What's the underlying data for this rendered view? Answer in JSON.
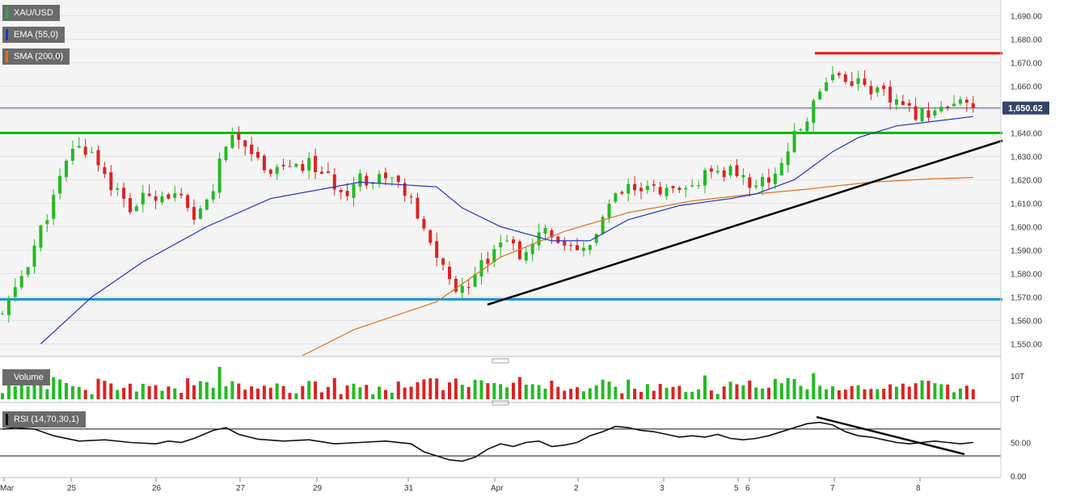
{
  "legend": {
    "symbol": "XAU/USD",
    "ema": "EMA (55,0)",
    "sma": "SMA (200,0)",
    "volume": "Volume",
    "rsi": "RSI (14,70,30,1)"
  },
  "colors": {
    "up": "#22bb22",
    "down": "#dd2222",
    "ema": "#2233cc",
    "sma": "#e07020",
    "support": "#1a8fd6",
    "resistance": "#00bb00",
    "high": "#ee1111",
    "trend": "#000000"
  },
  "chart_data": {
    "type": "candlestick",
    "title": "",
    "price_axis": {
      "min": 1545,
      "max": 1695,
      "ticks": [
        "1,690.00",
        "1,680.00",
        "1,670.00",
        "1,660.00",
        "1,650.00",
        "1,640.00",
        "1,630.00",
        "1,620.00",
        "1,610.00",
        "1,600.00",
        "1,590.00",
        "1,580.00",
        "1,570.00",
        "1,560.00",
        "1,550.00"
      ]
    },
    "last_price": "1,650.62",
    "x_labels": [
      "Mar",
      "25",
      "26",
      "27",
      "29",
      "31",
      "Apr",
      "2",
      "3",
      "5",
      "6",
      "7",
      "8"
    ],
    "horizontal_levels": [
      {
        "name": "support",
        "value": 1569
      },
      {
        "name": "resistance",
        "value": 1640
      },
      {
        "name": "high",
        "value": 1674
      }
    ],
    "volume_axis": {
      "ticks": [
        "10T",
        "0T"
      ]
    },
    "rsi_axis": {
      "ticks": [
        "50.00",
        "0.00"
      ],
      "overbought": 70,
      "oversold": 30
    },
    "price_path": [
      [
        0,
        1562
      ],
      [
        4,
        1585
      ],
      [
        8,
        1612
      ],
      [
        11,
        1634
      ],
      [
        14,
        1632
      ],
      [
        17,
        1618
      ],
      [
        20,
        1607
      ],
      [
        23,
        1614
      ],
      [
        26,
        1614
      ],
      [
        28,
        1611
      ],
      [
        30,
        1601
      ],
      [
        33,
        1617
      ],
      [
        35,
        1636
      ],
      [
        38,
        1637
      ],
      [
        40,
        1628
      ],
      [
        42,
        1625
      ],
      [
        44,
        1626
      ],
      [
        46,
        1624
      ],
      [
        48,
        1627
      ],
      [
        50,
        1623
      ],
      [
        52,
        1617
      ],
      [
        54,
        1616
      ],
      [
        56,
        1622
      ],
      [
        58,
        1619
      ],
      [
        60,
        1623
      ],
      [
        62,
        1618
      ],
      [
        64,
        1610
      ],
      [
        66,
        1597
      ],
      [
        68,
        1588
      ],
      [
        70,
        1577
      ],
      [
        72,
        1572
      ],
      [
        74,
        1582
      ],
      [
        76,
        1587
      ],
      [
        78,
        1596
      ],
      [
        80,
        1591
      ],
      [
        82,
        1587
      ],
      [
        84,
        1596
      ],
      [
        86,
        1598
      ],
      [
        88,
        1590
      ],
      [
        90,
        1588
      ],
      [
        92,
        1592
      ],
      [
        94,
        1604
      ],
      [
        96,
        1612
      ],
      [
        98,
        1616
      ],
      [
        100,
        1614
      ],
      [
        102,
        1617
      ],
      [
        104,
        1615
      ],
      [
        106,
        1613
      ],
      [
        108,
        1617
      ],
      [
        110,
        1622
      ],
      [
        112,
        1621
      ],
      [
        114,
        1625
      ],
      [
        116,
        1620
      ],
      [
        118,
        1618
      ],
      [
        120,
        1620
      ],
      [
        122,
        1628
      ],
      [
        124,
        1638
      ],
      [
        126,
        1646
      ],
      [
        128,
        1660
      ],
      [
        130,
        1666
      ],
      [
        132,
        1663
      ],
      [
        134,
        1662
      ],
      [
        136,
        1659
      ],
      [
        138,
        1656
      ],
      [
        140,
        1652
      ],
      [
        142,
        1649
      ],
      [
        144,
        1648
      ],
      [
        146,
        1651
      ],
      [
        148,
        1650
      ],
      [
        150,
        1652
      ],
      [
        152,
        1650.6
      ]
    ],
    "ema_path": [
      [
        6,
        1550
      ],
      [
        14,
        1570
      ],
      [
        22,
        1585
      ],
      [
        32,
        1600
      ],
      [
        42,
        1612
      ],
      [
        56,
        1619
      ],
      [
        68,
        1617
      ],
      [
        72,
        1608
      ],
      [
        78,
        1600
      ],
      [
        86,
        1594
      ],
      [
        92,
        1594
      ],
      [
        98,
        1603
      ],
      [
        106,
        1609
      ],
      [
        114,
        1612
      ],
      [
        118,
        1614
      ],
      [
        124,
        1620
      ],
      [
        130,
        1632
      ],
      [
        134,
        1638
      ],
      [
        140,
        1643
      ],
      [
        146,
        1645
      ],
      [
        152,
        1647
      ]
    ],
    "sma_path": [
      [
        47,
        1545
      ],
      [
        55,
        1556
      ],
      [
        68,
        1568
      ],
      [
        78,
        1587
      ],
      [
        88,
        1598
      ],
      [
        98,
        1606
      ],
      [
        108,
        1611
      ],
      [
        118,
        1614
      ],
      [
        126,
        1616
      ],
      [
        136,
        1619
      ],
      [
        146,
        1620.5
      ],
      [
        152,
        1621
      ]
    ],
    "rsi_path": [
      [
        0,
        70
      ],
      [
        2,
        72
      ],
      [
        5,
        70
      ],
      [
        8,
        60
      ],
      [
        12,
        52
      ],
      [
        16,
        54
      ],
      [
        20,
        50
      ],
      [
        24,
        48
      ],
      [
        26,
        52
      ],
      [
        28,
        50
      ],
      [
        30,
        56
      ],
      [
        33,
        68
      ],
      [
        35,
        72
      ],
      [
        37,
        62
      ],
      [
        40,
        55
      ],
      [
        44,
        52
      ],
      [
        48,
        54
      ],
      [
        52,
        48
      ],
      [
        56,
        50
      ],
      [
        60,
        52
      ],
      [
        64,
        48
      ],
      [
        66,
        36
      ],
      [
        68,
        30
      ],
      [
        70,
        24
      ],
      [
        72,
        22
      ],
      [
        74,
        28
      ],
      [
        76,
        40
      ],
      [
        78,
        48
      ],
      [
        80,
        44
      ],
      [
        82,
        50
      ],
      [
        84,
        52
      ],
      [
        86,
        44
      ],
      [
        88,
        46
      ],
      [
        90,
        50
      ],
      [
        92,
        60
      ],
      [
        94,
        66
      ],
      [
        96,
        74
      ],
      [
        98,
        72
      ],
      [
        100,
        68
      ],
      [
        102,
        66
      ],
      [
        104,
        62
      ],
      [
        106,
        58
      ],
      [
        108,
        60
      ],
      [
        110,
        58
      ],
      [
        112,
        62
      ],
      [
        114,
        56
      ],
      [
        116,
        54
      ],
      [
        118,
        56
      ],
      [
        120,
        60
      ],
      [
        122,
        66
      ],
      [
        124,
        72
      ],
      [
        126,
        78
      ],
      [
        128,
        80
      ],
      [
        130,
        76
      ],
      [
        132,
        66
      ],
      [
        134,
        60
      ],
      [
        136,
        58
      ],
      [
        138,
        54
      ],
      [
        140,
        50
      ],
      [
        142,
        48
      ],
      [
        144,
        50
      ],
      [
        146,
        52
      ],
      [
        148,
        50
      ],
      [
        150,
        48
      ],
      [
        152,
        50
      ]
    ]
  }
}
